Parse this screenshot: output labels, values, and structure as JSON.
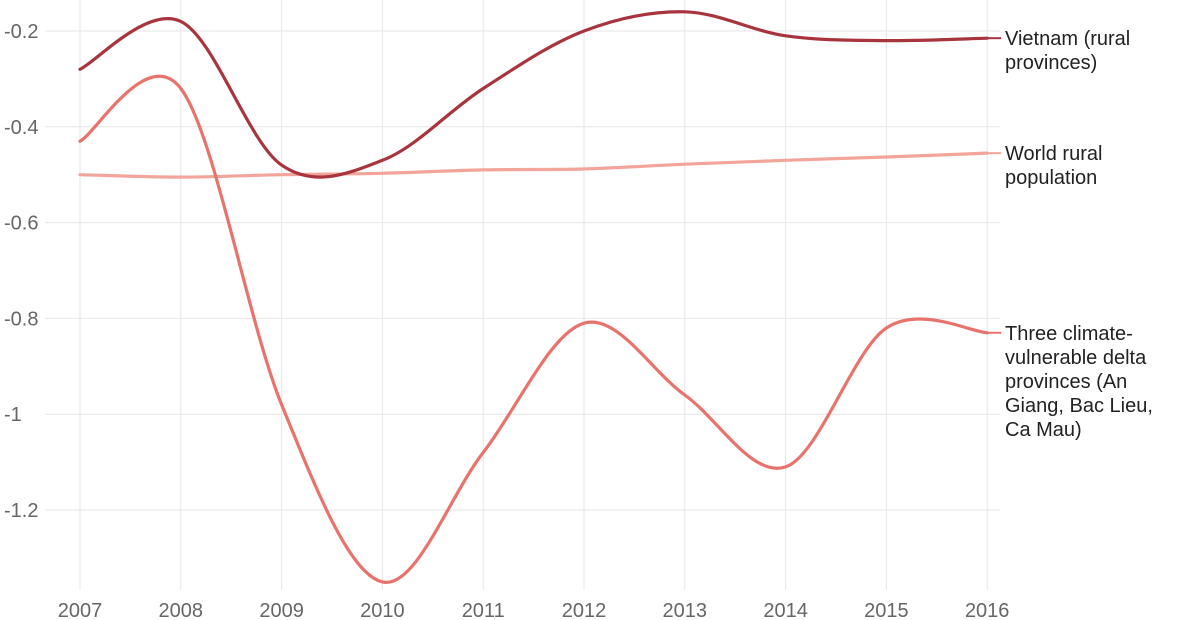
{
  "chart_data": {
    "type": "line",
    "title": "",
    "xlabel": "",
    "ylabel": "",
    "x": [
      2007,
      2008,
      2009,
      2010,
      2011,
      2012,
      2013,
      2014,
      2015,
      2016
    ],
    "x_tick_labels": [
      "2007",
      "2008",
      "2009",
      "2010",
      "2011",
      "2012",
      "2013",
      "2014",
      "2015",
      "2016"
    ],
    "y_ticks": [
      -0.2,
      -0.4,
      -0.6,
      -0.8,
      -1.0,
      -1.2
    ],
    "y_tick_labels": [
      "-0.2",
      "-0.4",
      "-0.6",
      "-0.8",
      "-1",
      "-1.2"
    ],
    "ylim": [
      -1.36,
      -0.15
    ],
    "grid": true,
    "legend": "direct labels at right end of each line",
    "series": [
      {
        "name": "Vietnam (rural provinces)",
        "label_lines": [
          "Vietnam (rural",
          "provinces)"
        ],
        "color": "#a8343e",
        "values": [
          -0.28,
          -0.18,
          -0.48,
          -0.47,
          -0.32,
          -0.2,
          -0.16,
          -0.21,
          -0.22,
          -0.215
        ]
      },
      {
        "name": "World rural population",
        "label_lines": [
          "World rural",
          "population"
        ],
        "color": "#f2a59a",
        "values": [
          -0.5,
          -0.505,
          -0.5,
          -0.497,
          -0.49,
          -0.488,
          -0.478,
          -0.47,
          -0.463,
          -0.455
        ]
      },
      {
        "name": "Three climate-vulnerable delta provinces (An Giang, Bac Lieu, Ca Mau)",
        "label_lines": [
          "Three climate-",
          "vulnerable delta",
          "provinces (An",
          "Giang, Bac Lieu,",
          "Ca Mau)"
        ],
        "color": "#e8736d",
        "values": [
          -0.43,
          -0.32,
          -0.98,
          -1.35,
          -1.08,
          -0.81,
          -0.96,
          -1.11,
          -0.82,
          -0.83
        ]
      }
    ]
  }
}
